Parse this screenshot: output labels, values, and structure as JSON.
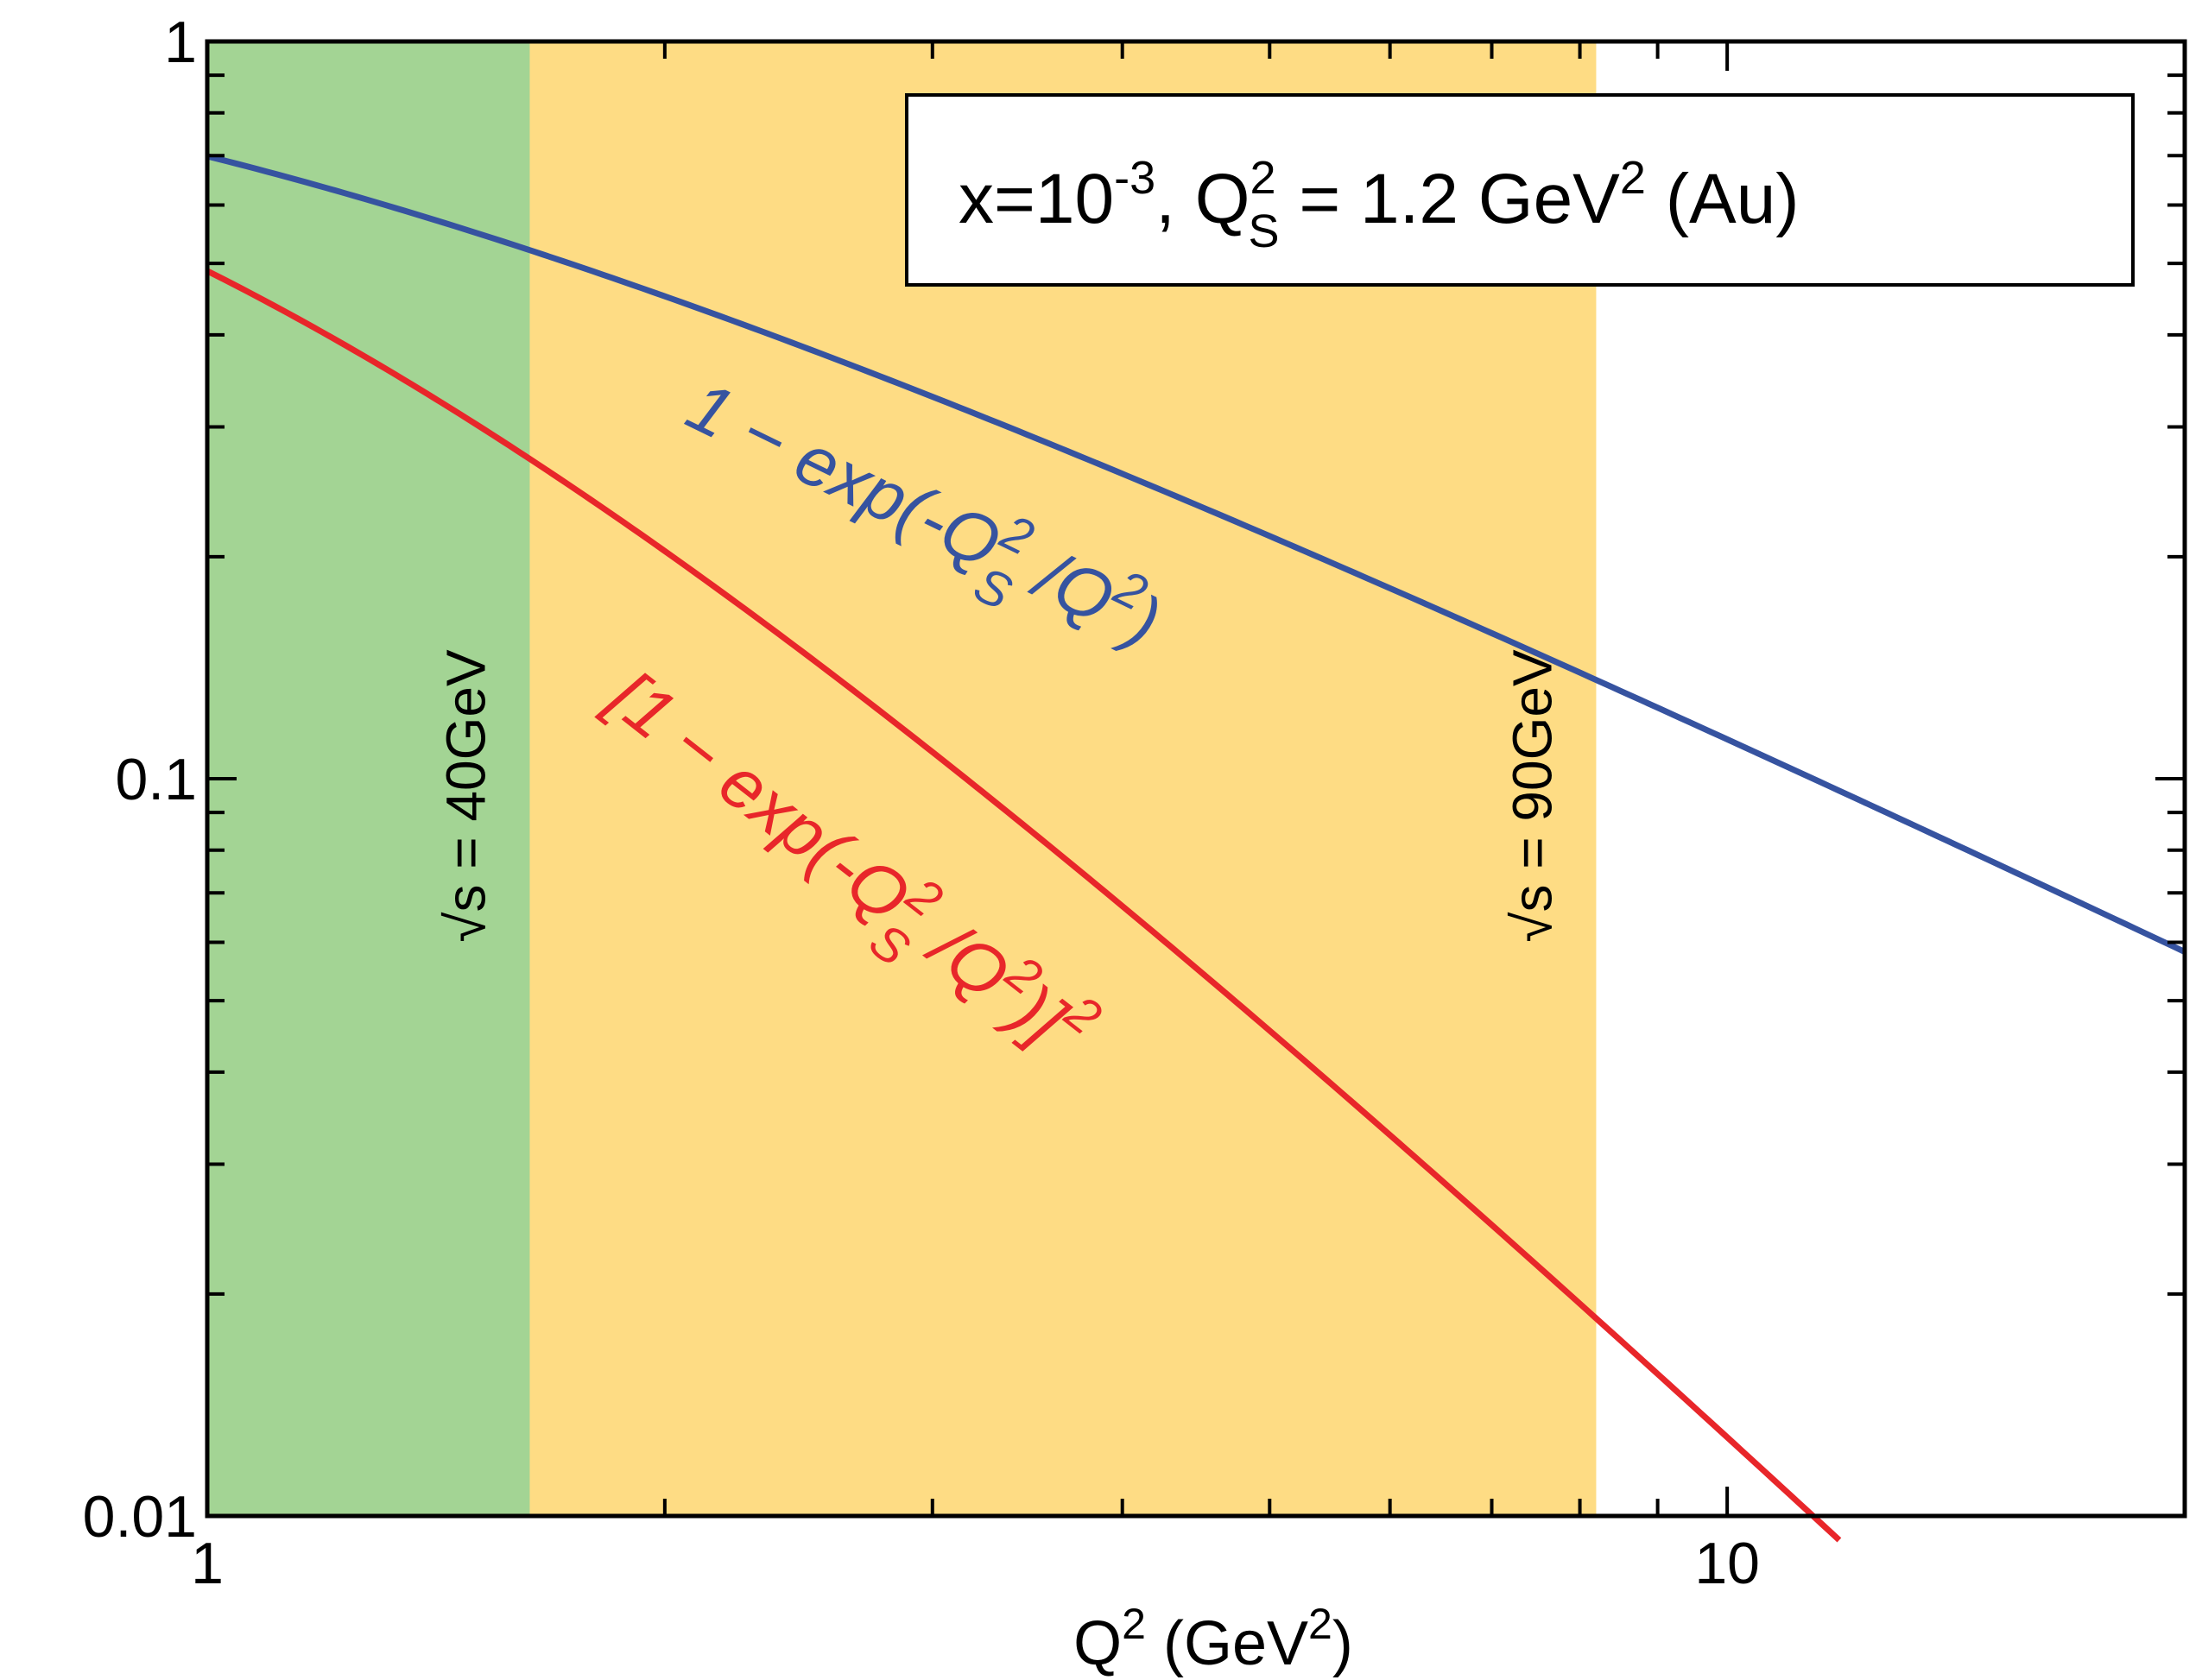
{
  "chart_data": {
    "type": "line",
    "x_scale": "log",
    "y_scale": "log",
    "xlim": [
      1,
      20
    ],
    "ylim": [
      0.01,
      1
    ],
    "x_ticks": [
      {
        "value": 1,
        "label": "1"
      },
      {
        "value": 10,
        "label": "10"
      }
    ],
    "y_ticks": [
      {
        "value": 0.01,
        "label": "0.01"
      },
      {
        "value": 0.1,
        "label": "0.1"
      },
      {
        "value": 1,
        "label": "1"
      }
    ],
    "xlabel": {
      "base": "Q",
      "sup": "2",
      "unit_open": " (GeV",
      "unit_sup": "2",
      "unit_close": ")"
    },
    "annotation_box": {
      "prefix": "x=10",
      "sup1": "-3",
      "mid": ", Q",
      "sup2": "2",
      "sub2": "S",
      "rest": " = 1.2 GeV",
      "sup3": "2",
      "tail": " (Au)"
    },
    "bands": [
      {
        "label": "√s = 40GeV",
        "x_from": 1,
        "x_to": 1.63,
        "color": "#a3d494"
      },
      {
        "label": "√s = 90GeV",
        "x_from": 1.63,
        "x_to": 8.2,
        "color": "#fedc84"
      }
    ],
    "qs2": 1.2,
    "series": [
      {
        "id": "blue",
        "formula": "one_minus_exp",
        "color": "#3653a0",
        "x_range": [
          1,
          20
        ],
        "label": {
          "main": "1 − exp(-Q",
          "sup": "2",
          "sub": "S",
          "rest": " /Q",
          "sup2": "2",
          "close": ")"
        }
      },
      {
        "id": "red",
        "formula": "one_minus_exp_squared",
        "color": "#e8262a",
        "x_range": [
          1,
          11.85
        ],
        "label": {
          "main": "[1 − exp(-Q",
          "sup": "2",
          "sub": "S",
          "rest": " /Q",
          "sup2": "2",
          "close": ")]",
          "sup3": "2"
        }
      }
    ]
  }
}
